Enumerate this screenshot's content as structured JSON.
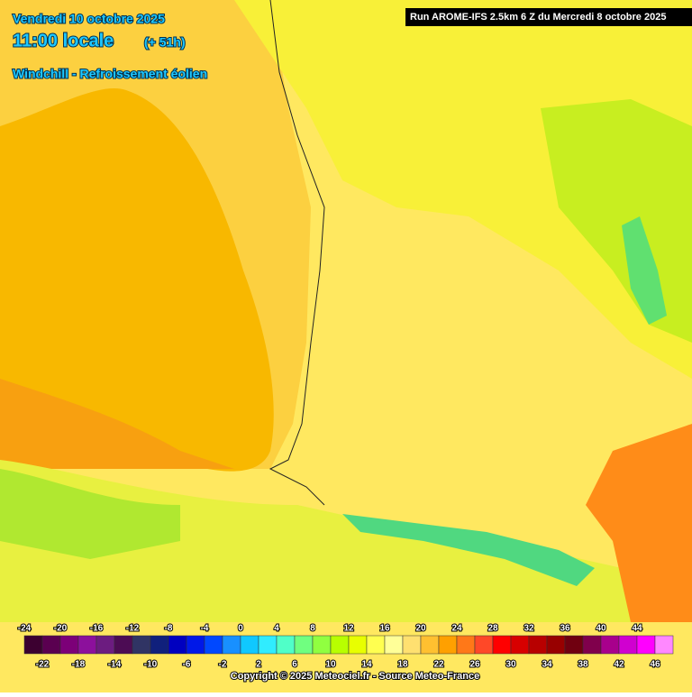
{
  "header": {
    "date": "Vendredi 10 octobre 2025",
    "time": "11:00 locale",
    "lead": "(+ 51h)",
    "parameter": "Windchill - Refroissement éolien",
    "run": "Run AROME-IFS 2.5km 6 Z du Mercredi 8 octobre 2025"
  },
  "legend": {
    "values": [
      -24,
      -22,
      -20,
      -18,
      -16,
      -14,
      -12,
      -10,
      -8,
      -6,
      -4,
      -2,
      0,
      2,
      4,
      6,
      8,
      10,
      12,
      14,
      16,
      18,
      20,
      22,
      24,
      26,
      28,
      30,
      32,
      34,
      36,
      38,
      40,
      42,
      44,
      46
    ],
    "colors": [
      "#3c0030",
      "#5a0050",
      "#7c0078",
      "#8c109c",
      "#6c1c80",
      "#4c0c54",
      "#303464",
      "#10207c",
      "#0000c0",
      "#0018e8",
      "#0048ff",
      "#1890ff",
      "#10c8ff",
      "#30ecff",
      "#50ffc8",
      "#70ff80",
      "#90ff40",
      "#b8ff00",
      "#e8ff00",
      "#ffff50",
      "#ffff98",
      "#ffe070",
      "#ffc030",
      "#ffa000",
      "#ff7818",
      "#ff4828",
      "#ff0000",
      "#d80000",
      "#b80000",
      "#980000",
      "#700010",
      "#80004c",
      "#a8008c",
      "#d000d0",
      "#ff00ff",
      "#ff88ff"
    ]
  },
  "footer": {
    "copyright": "Copyright © 2025 Meteociel.fr - Source Meteo-France"
  }
}
